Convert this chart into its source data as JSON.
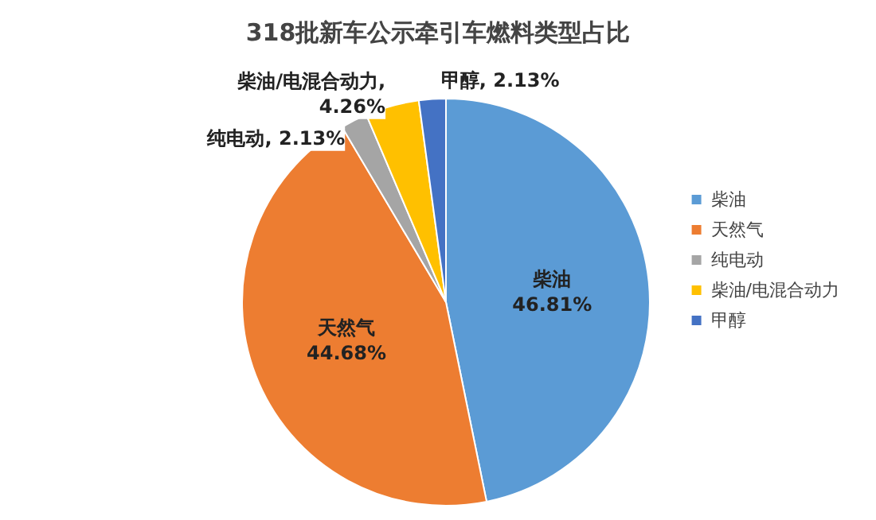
{
  "chart_data": {
    "type": "pie",
    "title": "318批新车公示牵引车燃料类型占比",
    "categories": [
      "柴油",
      "天然气",
      "纯电动",
      "柴油/电混合动力",
      "甲醇"
    ],
    "values": [
      46.81,
      44.68,
      2.13,
      4.26,
      2.13
    ],
    "value_labels": [
      "柴油\n46.81%",
      "天然气\n44.68%",
      "纯电动, 2.13%",
      "柴油/电混合动力,\n4.26%",
      "甲醇, 2.13%"
    ],
    "colors": [
      "#5b9bd5",
      "#ed7d31",
      "#a5a5a5",
      "#ffc000",
      "#4472c4"
    ],
    "legend": "right"
  }
}
